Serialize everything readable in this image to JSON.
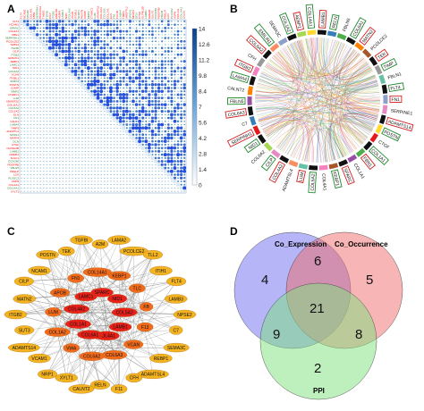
{
  "panels": {
    "a": {
      "label": "A",
      "colorbar_ticks": [
        "14",
        "12.6",
        "11.2",
        "9.8",
        "8.4",
        "7",
        "5.6",
        "4.2",
        "2.8",
        "1.4",
        "0"
      ],
      "colorbar_low": "#ffffff",
      "colorbar_high": "#0b3f8c",
      "row_labels": [
        "FLT4",
        "NCAM1",
        "SPARC",
        "COL4A1",
        "FBN1",
        "SERPINH1",
        "PCOLCE2",
        "THBS1",
        "TGFBI",
        "CILP",
        "ITGB2",
        "EMILIN1",
        "AEBP1",
        "LAMC1",
        "NID1",
        "COL6A2",
        "VCAN",
        "ITGBL1",
        "SFRP4",
        "POSTN",
        "COMP",
        "MMP2",
        "CTHRC1",
        "LUM",
        "ADAMTS2",
        "COL11A1",
        "COL5A2",
        "COL1A2",
        "ELN",
        "FN1",
        "CALD1",
        "LAMA4",
        "TIMP3",
        "ANGPTL2",
        "SPON1",
        "MFAP4",
        "DCN",
        "CTSK",
        "OLFML2B",
        "LAMB1",
        "GREM1",
        "SULF1",
        "CCDC80",
        "PDGFRB",
        "FBLN5",
        "PRELP",
        "LOX",
        "PLXDC2",
        "ASPN",
        "COL1A1",
        "COL14A1",
        "XYLT1"
      ],
      "row_colors": [
        "red",
        "red",
        "#2e7d32",
        "red",
        "red",
        "#2e7d32",
        "red",
        "red",
        "#2e7d32",
        "red",
        "#2e7d32",
        "red",
        "red",
        "#2e7d32",
        "red",
        "#2e7d32",
        "red",
        "red",
        "#2e7d32",
        "red",
        "red",
        "#2e7d32",
        "red",
        "#2e7d32",
        "red",
        "red",
        "#2e7d32",
        "red",
        "red",
        "#2e7d32",
        "red",
        "#2e7d32",
        "red",
        "red",
        "#2e7d32",
        "red",
        "#2e7d32",
        "red",
        "red",
        "#2e7d32",
        "red",
        "red",
        "#2e7d32",
        "red",
        "#2e7d32",
        "red",
        "red",
        "#2e7d32",
        "red",
        "red",
        "#2e7d32",
        "red"
      ]
    },
    "b": {
      "label": "B",
      "boxed_labels": [
        "LAMB1",
        "RELN",
        "COL6A1",
        "MATN2",
        "TEK",
        "TIMP",
        "FLT4",
        "FN1",
        "ADAMTS14",
        "POSTN",
        "COL1A1",
        "FBN1",
        "SPARC",
        "KEBP1",
        "COL5A2",
        "LUM",
        "COL4A2",
        "CILP",
        "NID1",
        "SERPINH1",
        "COL6A3",
        "FBLN5",
        "LAMA4",
        "ITGB2",
        "COL6A2",
        "EMILIN1",
        "COL1A2",
        "AEBP1",
        "COL14A1"
      ],
      "plain_labels": [
        "FBLN5",
        "PCOLCE2",
        "FBLN1",
        "SERPINE1",
        "CTGF",
        "COL1A1",
        "COL4A1",
        "ADAMTSL4",
        "COL6A2",
        "C7",
        "CALNT2",
        "CFH",
        "SEMA3C"
      ],
      "arc_colors": [
        "#e41a1c",
        "#377eb8",
        "#4daf4a",
        "#984ea3",
        "#ff7f00",
        "#a65628",
        "#f781bf",
        "#999999",
        "#66c2a5",
        "#fc8d62",
        "#8da0cb",
        "#e78ac3",
        "#a6d854",
        "#ffd92f"
      ]
    },
    "c": {
      "label": "C",
      "nodes": [
        {
          "name": "LAMB1",
          "tier": "core"
        },
        {
          "name": "COL4A1",
          "tier": "core"
        },
        {
          "name": "COL6A1",
          "tier": "core"
        },
        {
          "name": "COL1A1",
          "tier": "core"
        },
        {
          "name": "COL4A2",
          "tier": "core"
        },
        {
          "name": "LAMC1",
          "tier": "core"
        },
        {
          "name": "SPARC",
          "tier": "core"
        },
        {
          "name": "NID1",
          "tier": "core"
        },
        {
          "name": "COL5A2",
          "tier": "core"
        },
        {
          "name": "F13",
          "tier": "mid"
        },
        {
          "name": "VCAN",
          "tier": "mid"
        },
        {
          "name": "COL6A3",
          "tier": "mid"
        },
        {
          "name": "COL6A2",
          "tier": "mid"
        },
        {
          "name": "VWA",
          "tier": "mid"
        },
        {
          "name": "COL1A2",
          "tier": "mid"
        },
        {
          "name": "LUM",
          "tier": "mid"
        },
        {
          "name": "APOB",
          "tier": "mid"
        },
        {
          "name": "FN1",
          "tier": "mid"
        },
        {
          "name": "COL14A1",
          "tier": "mid"
        },
        {
          "name": "KEBP1",
          "tier": "mid"
        },
        {
          "name": "TLC",
          "tier": "mid"
        },
        {
          "name": "FB",
          "tier": "mid"
        },
        {
          "name": "NPSE2",
          "tier": "outer"
        },
        {
          "name": "C7",
          "tier": "outer"
        },
        {
          "name": "SEMA3C",
          "tier": "outer"
        },
        {
          "name": "REBP1",
          "tier": "outer"
        },
        {
          "name": "ADAMTSL4",
          "tier": "outer"
        },
        {
          "name": "CFH",
          "tier": "outer"
        },
        {
          "name": "F11",
          "tier": "outer"
        },
        {
          "name": "RELN",
          "tier": "outer"
        },
        {
          "name": "CALNT2",
          "tier": "outer"
        },
        {
          "name": "XYLT1",
          "tier": "outer"
        },
        {
          "name": "NRP1",
          "tier": "outer"
        },
        {
          "name": "VCAM1",
          "tier": "outer"
        },
        {
          "name": "ADAMTS14",
          "tier": "outer"
        },
        {
          "name": "SUT3",
          "tier": "outer"
        },
        {
          "name": "ITGB2",
          "tier": "outer"
        },
        {
          "name": "MATN2",
          "tier": "outer"
        },
        {
          "name": "CILP",
          "tier": "outer"
        },
        {
          "name": "NCAM1",
          "tier": "outer"
        },
        {
          "name": "POSTN",
          "tier": "outer"
        },
        {
          "name": "TEK",
          "tier": "outer"
        },
        {
          "name": "TGFBI",
          "tier": "outer"
        },
        {
          "name": "A2M",
          "tier": "outer"
        },
        {
          "name": "LAMA2",
          "tier": "outer"
        },
        {
          "name": "PCOLCE2",
          "tier": "outer"
        },
        {
          "name": "TLL2",
          "tier": "outer"
        },
        {
          "name": "ITIH1",
          "tier": "outer"
        },
        {
          "name": "FLT4",
          "tier": "outer"
        },
        {
          "name": "LAMB3",
          "tier": "outer"
        }
      ],
      "tier_colors": {
        "core": "#e8211b",
        "mid": "#f26b1d",
        "outer": "#f4b321"
      }
    },
    "d": {
      "label": "D",
      "sets": [
        {
          "name": "Co_Expression",
          "color": "#6b6bf0"
        },
        {
          "name": "Co_Occurrence",
          "color": "#f06b6b"
        },
        {
          "name": "PPI",
          "color": "#7ee27e"
        }
      ],
      "regions": {
        "expression_only": "4",
        "expression_occurrence": "6",
        "occurrence_only": "5",
        "all_three": "21",
        "expression_ppi": "9",
        "occurrence_ppi": "8",
        "ppi_only": "2"
      }
    }
  }
}
